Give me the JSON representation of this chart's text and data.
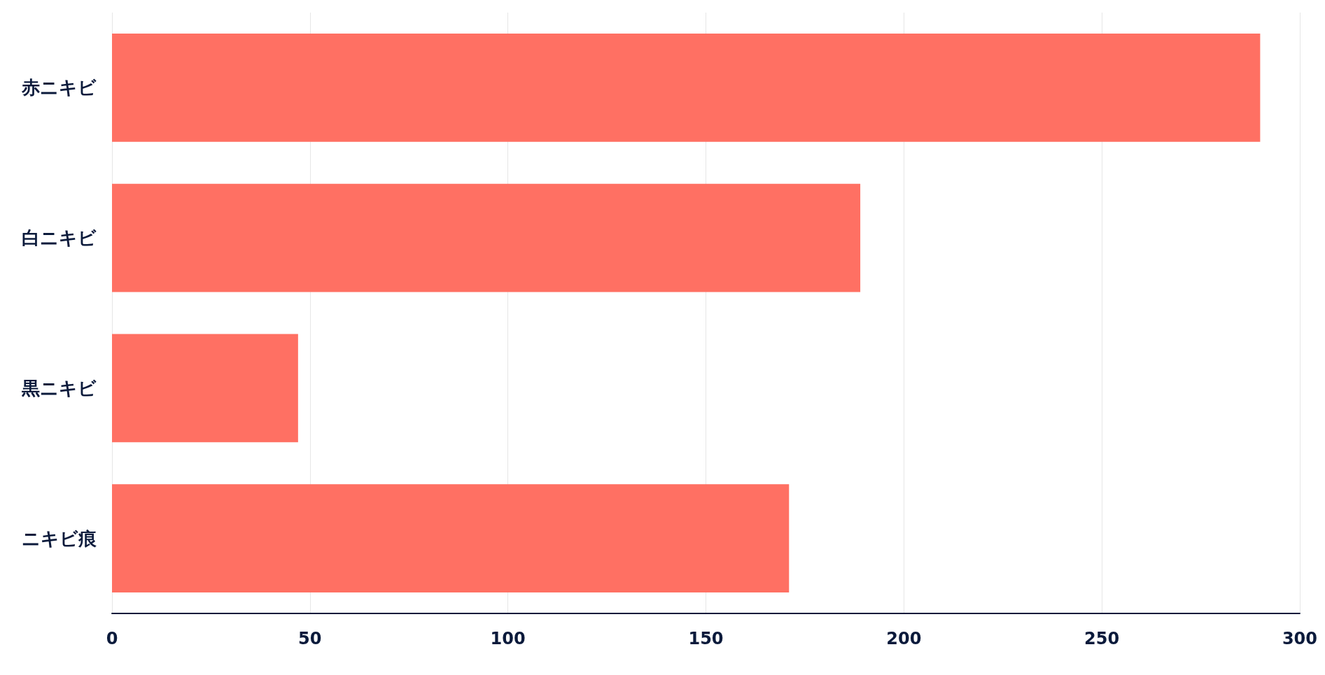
{
  "chart_data": {
    "type": "bar",
    "orientation": "horizontal",
    "categories": [
      "赤ニキビ",
      "白ニキビ",
      "黒ニキビ",
      "ニキビ痕"
    ],
    "values": [
      290,
      189,
      47,
      171
    ],
    "color": "#ff7063",
    "xlim": [
      0,
      300
    ],
    "xticks": [
      0,
      50,
      100,
      150,
      200,
      250,
      300
    ],
    "grid": "x"
  }
}
